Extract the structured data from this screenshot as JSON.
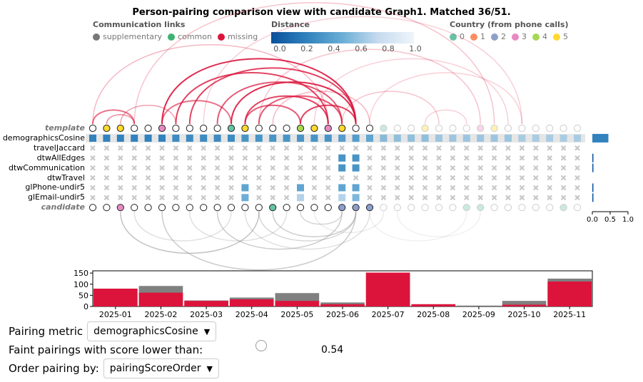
{
  "title": "Person-pairing comparison view with candidate Graph1. Matched 36/51.",
  "legend": {
    "links_title": "Communication links",
    "links": [
      {
        "label": "supplementary",
        "color": "#777777"
      },
      {
        "label": "common",
        "color": "#3cb371"
      },
      {
        "label": "missing",
        "color": "#dc143c"
      }
    ],
    "distance_title": "Distance",
    "distance_ticks": [
      "0.0",
      "0.2",
      "0.4",
      "0.6",
      "0.8",
      "1.0"
    ],
    "country_title": "Country (from phone calls)",
    "countries": [
      {
        "label": "0",
        "color": "#66c2a5"
      },
      {
        "label": "1",
        "color": "#fc8d62"
      },
      {
        "label": "2",
        "color": "#8da0cb"
      },
      {
        "label": "3",
        "color": "#e78ac3"
      },
      {
        "label": "4",
        "color": "#a6d854"
      },
      {
        "label": "5",
        "color": "#ffd92f"
      }
    ]
  },
  "matrix": {
    "rows": [
      "template",
      "demographicsCosine",
      "travelJaccard",
      "dtwAllEdges",
      "dtwCommunication",
      "dtwTravel",
      "glPhone-undir5",
      "glEmail-undir5",
      "candidate"
    ],
    "template_nodes": [
      "none",
      "5",
      "5",
      "none",
      "none",
      "3",
      "none",
      "none",
      "none",
      "none",
      "0",
      "5",
      "none",
      "none",
      "none",
      "4",
      "5",
      "3",
      "5",
      "none",
      "none",
      "0",
      "none",
      "none",
      "5",
      "none",
      "none",
      "none",
      "3",
      "5",
      "none",
      "none",
      "none",
      "none",
      "none",
      "none"
    ],
    "candidate_nodes": [
      "none",
      "none",
      "3",
      "none",
      "none",
      "none",
      "none",
      "none",
      "none",
      "none",
      "none",
      "none",
      "none",
      "0",
      "none",
      "none",
      "none",
      "none",
      "2",
      "2",
      "2",
      "none",
      "none",
      "none",
      "none",
      "none",
      "none",
      "0",
      "0",
      "none",
      "none",
      "none",
      "none",
      "none",
      "0",
      "none"
    ],
    "matched_columns": 21,
    "row_values": {
      "demographicsCosine": [
        0.25,
        0.25,
        0.25,
        0.25,
        0.25,
        0.25,
        0.3,
        0.3,
        0.3,
        0.3,
        0.3,
        0.35,
        0.35,
        0.35,
        0.35,
        0.35,
        0.35,
        0.35,
        0.4,
        0.4,
        0.45,
        0.45,
        0.5,
        0.5,
        0.5,
        0.55,
        0.55,
        0.55,
        0.55,
        0.55,
        0.55,
        0.6,
        0.6,
        0.6,
        0.6,
        0.6
      ],
      "dtwAllEdges": {
        "18": 0.35,
        "19": 0.35
      },
      "dtwCommunication": {
        "18": 0.35,
        "19": 0.35
      },
      "glPhone-undir5": {
        "11": 0.45,
        "15": 0.45,
        "18": 0.45,
        "19": 0.45
      },
      "glEmail-undir5": {
        "11": 0.5,
        "15": 0.7,
        "18": 0.7,
        "19": 0.55
      }
    },
    "side_bars": {
      "demographicsCosine": 0.45,
      "dtwAllEdges": 0.01,
      "dtwCommunication": 0.01,
      "glPhone-undir5": 0.02,
      "glEmail-undir5": 0.03
    },
    "side_axis": [
      "0.0",
      "0.5",
      "1.0"
    ]
  },
  "histogram": {
    "y_ticks": [
      "0",
      "50",
      "100",
      "150"
    ],
    "ymax": 160,
    "months": [
      "2025-01",
      "2025-02",
      "2025-03",
      "2025-04",
      "2025-05",
      "2025-06",
      "2025-07",
      "2025-08",
      "2025-09",
      "2025-10",
      "2025-11"
    ],
    "total": [
      80,
      92,
      27,
      40,
      60,
      18,
      152,
      10,
      4,
      25,
      125
    ],
    "missing": [
      80,
      62,
      25,
      32,
      25,
      10,
      152,
      10,
      0,
      8,
      112
    ]
  },
  "controls": {
    "pairing_metric_label": "Pairing metric",
    "pairing_metric_value": "demographicsCosine",
    "faint_label": "Faint pairings with score lower than:",
    "faint_value": "0.54",
    "order_label": "Order pairing by:",
    "order_value": "pairingScoreOrder"
  }
}
